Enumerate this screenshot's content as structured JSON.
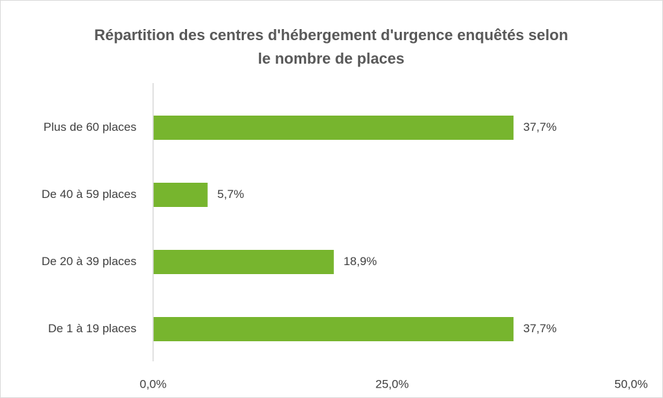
{
  "chart_data": {
    "type": "hbar",
    "title": "Répartition des centres d'hébergement d'urgence enquêtés selon le nombre de places",
    "categories": [
      "Plus de 60 places",
      "De 40 à 59 places",
      "De 20 à 39 places",
      "De 1 à 19 places"
    ],
    "values": [
      37.7,
      5.7,
      18.9,
      37.7
    ],
    "value_labels": [
      "37,7%",
      "5,7%",
      "18,9%",
      "37,7%"
    ],
    "color": "#77b52e",
    "xlim": [
      0,
      50
    ],
    "xticks": [
      {
        "value": 0,
        "label": "0,0%"
      },
      {
        "value": 25,
        "label": "25,0%"
      },
      {
        "value": 50,
        "label": "50,0%"
      }
    ]
  }
}
